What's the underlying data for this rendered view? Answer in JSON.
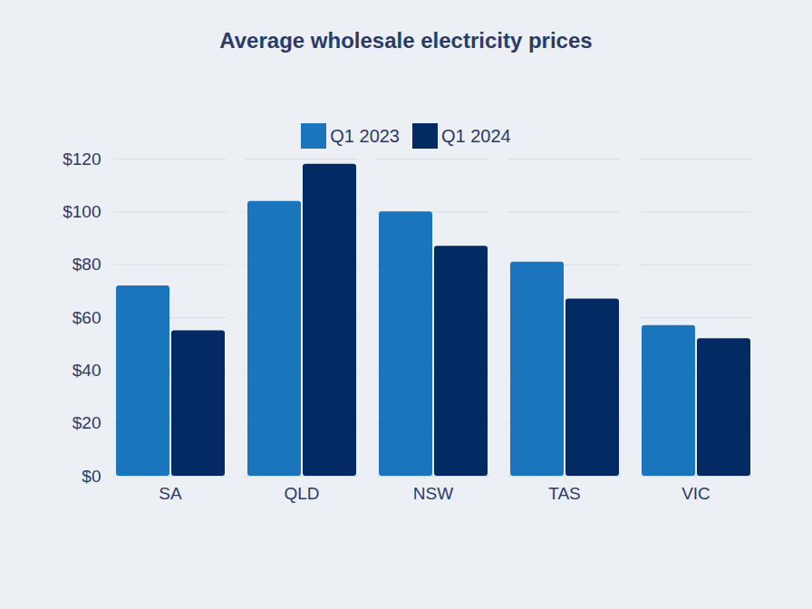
{
  "chart_data": {
    "type": "bar",
    "title": "Average wholesale electricity prices",
    "categories": [
      "SA",
      "QLD",
      "NSW",
      "TAS",
      "VIC"
    ],
    "series": [
      {
        "name": "Q1 2023",
        "color": "#1b75bc",
        "values": [
          72,
          104,
          100,
          81,
          57
        ]
      },
      {
        "name": "Q1 2024",
        "color": "#032a63",
        "values": [
          55,
          118,
          87,
          67,
          52
        ]
      }
    ],
    "ylim": [
      0,
      120
    ],
    "yticks": [
      {
        "value": 0,
        "label": "$0"
      },
      {
        "value": 20,
        "label": "$20"
      },
      {
        "value": 40,
        "label": "$40"
      },
      {
        "value": 60,
        "label": "$60"
      },
      {
        "value": 80,
        "label": "$80"
      },
      {
        "value": 100,
        "label": "$100"
      },
      {
        "value": 120,
        "label": "$120"
      }
    ],
    "grid": true,
    "legend": "top"
  }
}
